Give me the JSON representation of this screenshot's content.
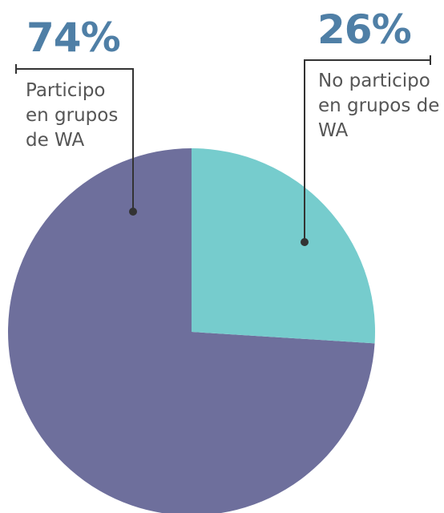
{
  "chart_data": {
    "type": "pie",
    "categories": [
      "Participo en grupos de WA",
      "No participo en grupos de WA"
    ],
    "values": [
      74,
      26
    ],
    "value_labels": [
      "74%",
      "26%"
    ],
    "colors": [
      "#6e6f9c",
      "#76cccd"
    ]
  }
}
